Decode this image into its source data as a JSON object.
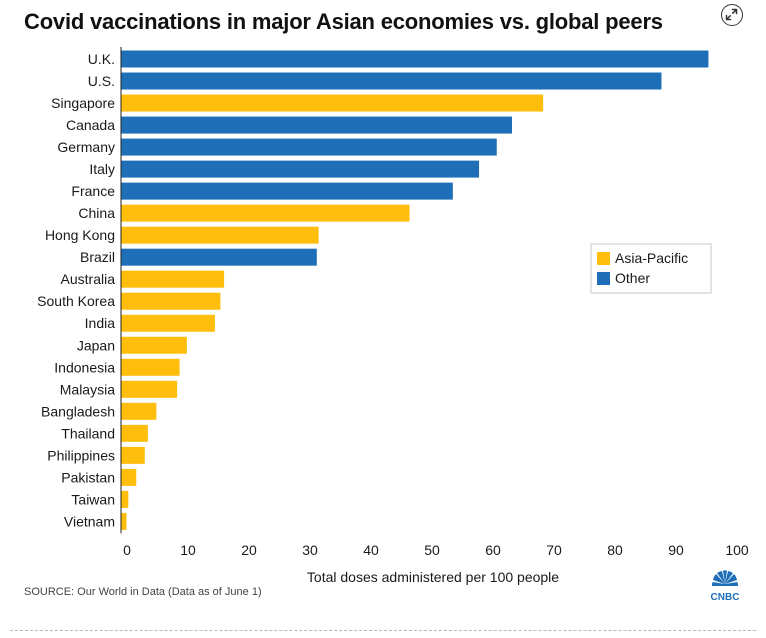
{
  "header": {
    "title": "Covid vaccinations in major Asian economies vs. global peers"
  },
  "footer": {
    "source": "SOURCE: Our World in Data (Data as of June 1)",
    "logo_text": "CNBC"
  },
  "colors": {
    "asia_pacific": "#FFBE0B",
    "other": "#1E6FB8",
    "axis": "#222222"
  },
  "icons": {
    "expand": "expand-arrows-icon",
    "logo": "cnbc-peacock-logo"
  },
  "chart_data": {
    "type": "bar",
    "orientation": "horizontal",
    "title": "Covid vaccinations in major Asian economies vs. global peers",
    "xlabel": "Total doses administered per 100 people",
    "ylabel": "",
    "xlim": [
      0,
      100
    ],
    "xticks": [
      0,
      10,
      20,
      30,
      40,
      50,
      60,
      70,
      80,
      90,
      100
    ],
    "grid": false,
    "legend_position": "right-middle",
    "legend": [
      {
        "group": "asia_pacific",
        "label": "Asia-Pacific"
      },
      {
        "group": "other",
        "label": "Other"
      }
    ],
    "categories": [
      "U.K.",
      "U.S.",
      "Singapore",
      "Canada",
      "Germany",
      "Italy",
      "France",
      "China",
      "Hong Kong",
      "Brazil",
      "Australia",
      "South Korea",
      "India",
      "Japan",
      "Indonesia",
      "Malaysia",
      "Bangladesh",
      "Thailand",
      "Philippines",
      "Pakistan",
      "Taiwan",
      "Vietnam"
    ],
    "values": [
      96.3,
      88.6,
      69.2,
      64.1,
      61.6,
      58.7,
      54.4,
      47.3,
      32.4,
      32.1,
      16.9,
      16.3,
      15.4,
      10.8,
      9.6,
      9.2,
      5.8,
      4.4,
      3.9,
      2.5,
      1.2,
      0.9
    ],
    "groups": [
      "other",
      "other",
      "asia_pacific",
      "other",
      "other",
      "other",
      "other",
      "asia_pacific",
      "asia_pacific",
      "other",
      "asia_pacific",
      "asia_pacific",
      "asia_pacific",
      "asia_pacific",
      "asia_pacific",
      "asia_pacific",
      "asia_pacific",
      "asia_pacific",
      "asia_pacific",
      "asia_pacific",
      "asia_pacific",
      "asia_pacific"
    ]
  }
}
